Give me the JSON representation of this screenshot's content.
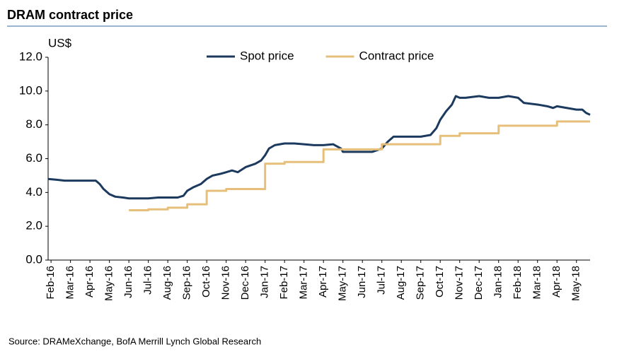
{
  "chart_data": {
    "type": "line",
    "title": "DRAM contract price",
    "y_label": "US$",
    "source": "Source:  DRAMeXchange,  BofA Merrill Lynch Global Research",
    "legend": "top",
    "xlim": [
      -0.15,
      27.7
    ],
    "ylim": [
      0,
      12
    ],
    "xticks": [
      {
        "value": 0,
        "label": "Feb-16"
      },
      {
        "value": 1,
        "label": "Mar-16"
      },
      {
        "value": 2,
        "label": "Apr-16"
      },
      {
        "value": 3,
        "label": "May-16"
      },
      {
        "value": 4,
        "label": "Jun-16"
      },
      {
        "value": 5,
        "label": "Jul-16"
      },
      {
        "value": 6,
        "label": "Aug-16"
      },
      {
        "value": 7,
        "label": "Sep-16"
      },
      {
        "value": 8,
        "label": "Oct-16"
      },
      {
        "value": 9,
        "label": "Nov-16"
      },
      {
        "value": 10,
        "label": "Dec-16"
      },
      {
        "value": 11,
        "label": "Jan-17"
      },
      {
        "value": 12,
        "label": "Feb-17"
      },
      {
        "value": 13,
        "label": "Mar-17"
      },
      {
        "value": 14,
        "label": "Apr-17"
      },
      {
        "value": 15,
        "label": "May-17"
      },
      {
        "value": 16,
        "label": "Jun-17"
      },
      {
        "value": 17,
        "label": "Jul-17"
      },
      {
        "value": 18,
        "label": "Aug-17"
      },
      {
        "value": 19,
        "label": "Sep-17"
      },
      {
        "value": 20,
        "label": "Oct-17"
      },
      {
        "value": 21,
        "label": "Nov-17"
      },
      {
        "value": 22,
        "label": "Dec-17"
      },
      {
        "value": 23,
        "label": "Jan-18"
      },
      {
        "value": 24,
        "label": "Feb-18"
      },
      {
        "value": 25,
        "label": "Mar-18"
      },
      {
        "value": 26,
        "label": "Apr-18"
      },
      {
        "value": 27,
        "label": "May-18"
      }
    ],
    "yticks": [
      {
        "value": 0,
        "label": "0.0"
      },
      {
        "value": 2,
        "label": "2.0"
      },
      {
        "value": 4,
        "label": "4.0"
      },
      {
        "value": 6,
        "label": "6.0"
      },
      {
        "value": 8,
        "label": "8.0"
      },
      {
        "value": 10,
        "label": "10.0"
      },
      {
        "value": 12,
        "label": "12.0"
      }
    ],
    "series": [
      {
        "name": "Spot price",
        "color": "#1b3a5e",
        "x": [
          -0.15,
          0.3,
          0.7,
          1,
          2,
          2.3,
          2.5,
          2.7,
          3,
          3.3,
          3.7,
          4,
          5,
          5.5,
          6,
          6.5,
          6.8,
          7,
          7.3,
          7.7,
          8,
          8.3,
          8.7,
          9,
          9.3,
          9.6,
          10,
          10.5,
          10.8,
          11,
          11.2,
          11.5,
          12,
          12.5,
          13,
          13.5,
          14,
          14.5,
          14.9,
          15,
          16,
          16.5,
          17,
          17.3,
          17.6,
          18,
          19,
          19.5,
          19.8,
          20,
          20.3,
          20.6,
          20.8,
          21,
          21.3,
          22,
          22.5,
          23,
          23.5,
          24,
          24.3,
          25,
          25.5,
          25.8,
          26,
          26.5,
          27,
          27.3,
          27.5,
          27.7
        ],
        "values": [
          4.8,
          4.75,
          4.7,
          4.7,
          4.7,
          4.7,
          4.5,
          4.2,
          3.9,
          3.75,
          3.7,
          3.65,
          3.65,
          3.7,
          3.7,
          3.7,
          3.8,
          4.1,
          4.3,
          4.5,
          4.8,
          5.0,
          5.1,
          5.2,
          5.3,
          5.2,
          5.5,
          5.7,
          5.9,
          6.2,
          6.6,
          6.8,
          6.9,
          6.9,
          6.85,
          6.8,
          6.8,
          6.85,
          6.6,
          6.4,
          6.4,
          6.4,
          6.6,
          7.0,
          7.3,
          7.3,
          7.3,
          7.4,
          7.8,
          8.3,
          8.8,
          9.2,
          9.7,
          9.6,
          9.6,
          9.7,
          9.6,
          9.6,
          9.7,
          9.6,
          9.3,
          9.2,
          9.1,
          9.0,
          9.1,
          9.0,
          8.9,
          8.9,
          8.7,
          8.6
        ]
      },
      {
        "name": "Contract price",
        "color": "#e6c07a",
        "x": [
          4,
          5,
          5,
          6,
          6,
          7,
          7,
          8,
          8,
          9,
          9,
          11,
          11,
          12,
          12,
          14,
          14,
          17,
          17,
          20,
          20,
          21,
          21,
          23,
          23,
          26,
          26,
          27.7
        ],
        "values": [
          2.95,
          2.95,
          3.0,
          3.0,
          3.1,
          3.1,
          3.3,
          3.3,
          4.1,
          4.1,
          4.2,
          4.2,
          5.7,
          5.7,
          5.8,
          5.8,
          6.55,
          6.55,
          6.85,
          6.85,
          7.35,
          7.35,
          7.5,
          7.5,
          7.95,
          7.95,
          8.2,
          8.2
        ]
      }
    ]
  }
}
